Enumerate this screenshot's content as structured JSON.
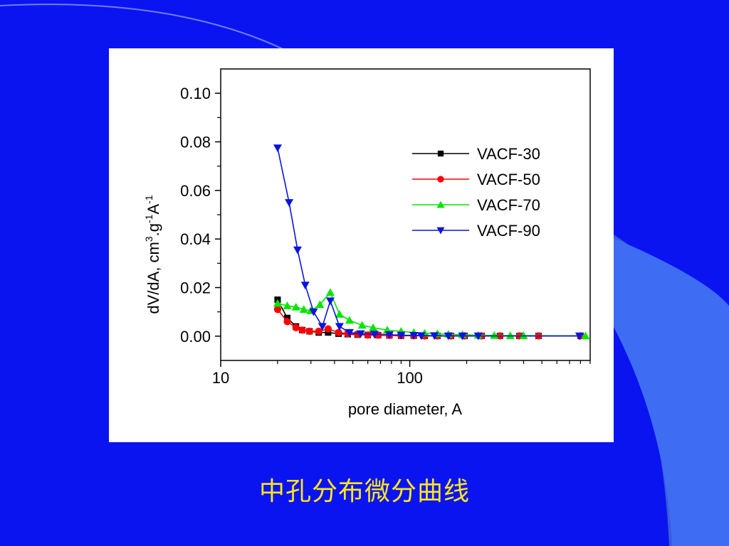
{
  "slide": {
    "caption": "中孔分布微分曲线",
    "background_color": "#0a14f0",
    "caption_color": "#ffe61e"
  },
  "chart_data": {
    "type": "line",
    "xscale": "log",
    "xlim": [
      10,
      900
    ],
    "ylim": [
      -0.01,
      0.11
    ],
    "xticks": [
      {
        "value": 10,
        "label": "10"
      },
      {
        "value": 100,
        "label": "100"
      }
    ],
    "yticks": [
      {
        "value": 0.0,
        "label": "0.00"
      },
      {
        "value": 0.02,
        "label": "0.02"
      },
      {
        "value": 0.04,
        "label": "0.04"
      },
      {
        "value": 0.06,
        "label": "0.06"
      },
      {
        "value": 0.08,
        "label": "0.08"
      },
      {
        "value": 0.1,
        "label": "0.10"
      }
    ],
    "xlabel": "pore diameter, A",
    "ylabel": "dV/dA, cm3.g-1A-1",
    "ylabel_parts": {
      "base": "dV/dA, cm",
      "sup1": "3",
      "mid": ".g",
      "sup2": "-1",
      "mid2": "A",
      "sup3": "-1"
    },
    "legend_position": "upper-right",
    "series": [
      {
        "name": "VACF-30",
        "color": "#000000",
        "marker": "square",
        "x": [
          20,
          22.5,
          25,
          27,
          29.5,
          33,
          37,
          42,
          47,
          53,
          60,
          68,
          78,
          90,
          105,
          120,
          140,
          165,
          195,
          240,
          300,
          380,
          480,
          800
        ],
        "y": [
          0.015,
          0.0075,
          0.004,
          0.0025,
          0.002,
          0.0015,
          0.0015,
          0.001,
          0.0008,
          0.0006,
          0.0005,
          0.0004,
          0.0003,
          0.0002,
          0.0002,
          0.0001,
          0.0001,
          0.0001,
          0.0001,
          0.0001,
          0.0001,
          0.0001,
          0.0001,
          0.0001
        ]
      },
      {
        "name": "VACF-50",
        "color": "#ff0000",
        "marker": "circle",
        "x": [
          20,
          22.5,
          25,
          27,
          29.5,
          33,
          37,
          42,
          47,
          53,
          60,
          68,
          78,
          90,
          105,
          120,
          140,
          165,
          195,
          240,
          300,
          380,
          480,
          800
        ],
        "y": [
          0.011,
          0.006,
          0.0035,
          0.0025,
          0.002,
          0.002,
          0.003,
          0.0015,
          0.001,
          0.0008,
          0.0005,
          0.0004,
          0.0003,
          0.0002,
          0.0002,
          0.0001,
          0.0001,
          0.0001,
          0.0001,
          0.0001,
          0.0001,
          0.0001,
          0.0001,
          0.0001
        ]
      },
      {
        "name": "VACF-70",
        "color": "#00e600",
        "marker": "triangle-up",
        "x": [
          20,
          22.5,
          25,
          27.5,
          30,
          33.5,
          38,
          42.5,
          48,
          56,
          64,
          76,
          90,
          105,
          120,
          140,
          160,
          190,
          230,
          280,
          340,
          400,
          850
        ],
        "y": [
          0.0135,
          0.0125,
          0.012,
          0.011,
          0.0105,
          0.013,
          0.018,
          0.009,
          0.0065,
          0.0045,
          0.0035,
          0.0025,
          0.002,
          0.0015,
          0.0012,
          0.001,
          0.0008,
          0.0006,
          0.0004,
          0.0003,
          0.0002,
          0.0002,
          0.0001
        ]
      },
      {
        "name": "VACF-90",
        "color": "#0a14dc",
        "marker": "triangle-down",
        "x": [
          20,
          23,
          25.5,
          28,
          31,
          34.5,
          38,
          42.5,
          48,
          55,
          65,
          78,
          90,
          105,
          115,
          135,
          160,
          190,
          230,
          790
        ],
        "y": [
          0.0775,
          0.055,
          0.0355,
          0.021,
          0.01,
          0.004,
          0.0145,
          0.004,
          0.0015,
          0.001,
          0.0008,
          0.0006,
          0.0004,
          0.0003,
          0.0002,
          0.0002,
          0.0001,
          0.0001,
          0.0001,
          0.0001
        ]
      }
    ]
  }
}
